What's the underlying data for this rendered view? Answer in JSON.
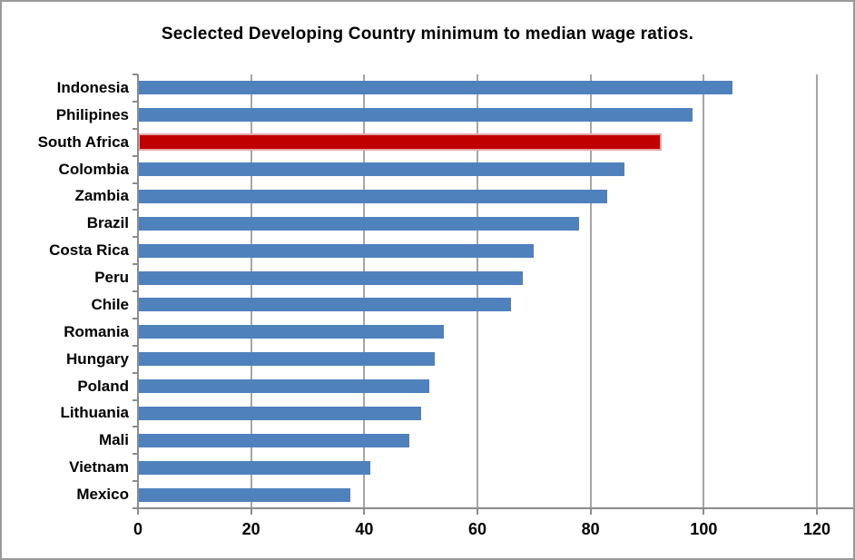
{
  "chart_data": {
    "type": "bar",
    "orientation": "horizontal",
    "title": "Seclected Developing Country minimum to median wage ratios.",
    "categories": [
      "Indonesia",
      "Philipines",
      "South Africa",
      "Colombia",
      "Zambia",
      "Brazil",
      "Costa Rica",
      "Peru",
      "Chile",
      "Romania",
      "Hungary",
      "Poland",
      "Lithuania",
      "Mali",
      "Vietnam",
      "Mexico"
    ],
    "values": [
      105,
      98,
      92.5,
      86,
      83,
      78,
      70,
      68,
      66,
      54,
      52.5,
      51.5,
      50,
      48,
      41,
      37.5
    ],
    "highlight_category": "South Africa",
    "xlabel": "",
    "ylabel": "",
    "xlim": [
      0,
      120
    ],
    "x_ticks": [
      0,
      20,
      40,
      60,
      80,
      100,
      120
    ],
    "grid": true,
    "legend_position": "none",
    "colors": {
      "bar": "#4f81bd",
      "highlight_bar": "#c00000",
      "highlight_border": "#e2a6a6",
      "gridline": "#a6a6a6",
      "axis": "#8c8c8c",
      "text": "#000000",
      "chart_border": "#999999",
      "background": "#ffffff"
    }
  }
}
